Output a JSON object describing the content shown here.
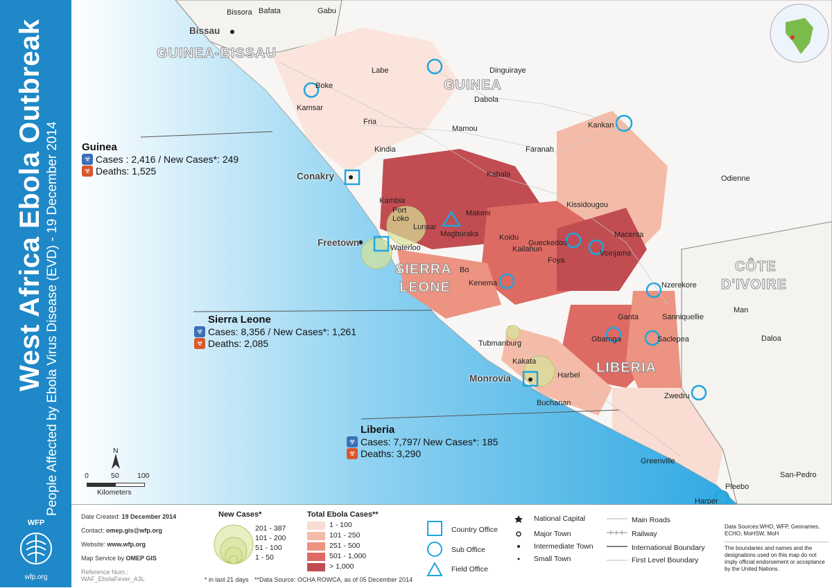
{
  "title": "West Africa Ebola Outbreak",
  "subtitle": "People Affected by Ebola Virus Disease (EVD) - 19 December 2014",
  "logo": {
    "name": "WFP",
    "url": "wfp.org"
  },
  "countries": {
    "guinea_bissau": "GUINEA-BISSAU",
    "guinea": "GUINEA",
    "sierra_leone": [
      "SIERRA",
      "LEONE"
    ],
    "liberia": "LIBERIA",
    "cote_divoire": [
      "CÔTE",
      "D'IVOIRE"
    ]
  },
  "capitals": {
    "bissau": "Bissau",
    "conakry": "Conakry",
    "freetown": "Freetown",
    "monrovia": "Monrovia"
  },
  "towns": [
    "Bissora",
    "Bafata",
    "Gabu",
    "Labe",
    "Boke",
    "Kamsar",
    "Dinguiraye",
    "Dabola",
    "Fria",
    "Mamou",
    "Kankan",
    "Kindia",
    "Faranah",
    "Kabala",
    "Kambia",
    "Port",
    "Loko",
    "Makeni",
    "Lunsar",
    "Magburaka",
    "Koidu",
    "Kissidougou",
    "Odienne",
    "Gueckedou",
    "Macenta",
    "Kailahun",
    "Foya",
    "Voinjama",
    "Waterloo",
    "Bo",
    "Kenema",
    "Nzerekore",
    "Man",
    "Ganta",
    "Sanniquellie",
    "Tubmanburg",
    "Gbarnga",
    "Saclepea",
    "Daloa",
    "Kakata",
    "Harbel",
    "Buchanan",
    "Zwedru",
    "Greenville",
    "San-Pedro",
    "Pleebo",
    "Harper"
  ],
  "callouts": {
    "guinea": {
      "name": "Guinea",
      "cases": "Cases : 2,416 / New Cases*: 249",
      "deaths": "Deaths: 1,525"
    },
    "sierra_leone": {
      "name": "Sierra Leone",
      "cases": "Cases: 8,356 / New Cases*: 1,261",
      "deaths": "Deaths: 2,085"
    },
    "liberia": {
      "name": "Liberia",
      "cases": "Cases: 7,797/ New Cases*: 185",
      "deaths": "Deaths: 3,290"
    }
  },
  "scale": {
    "north": "N",
    "ticks": [
      "0",
      "50",
      "100"
    ],
    "unit": "Kilometers"
  },
  "info": {
    "created": "Date Created:",
    "created_value": "19 December 2014",
    "contact": "Contact:",
    "contact_value": "omep.gis@wfp.org",
    "website": "Website:",
    "website_value": "www.wfp.org",
    "service": "Map Service by",
    "service_value": "OMEP GIS",
    "ref": "Reference Num.:",
    "ref_value": "WAF_EbolaFever_A3L"
  },
  "legend_new_cases": {
    "title": "New Cases*",
    "items": [
      "201 - 387",
      "101 - 200",
      "51 - 100",
      "1 - 50"
    ],
    "note": "* in last 21 days"
  },
  "legend_total": {
    "title": "Total Ebola Cases**",
    "items": [
      {
        "label": "1 - 100",
        "color": "#f9dcd2"
      },
      {
        "label": "101 - 250",
        "color": "#f4bca8"
      },
      {
        "label": "251 - 500",
        "color": "#ec9381"
      },
      {
        "label": "501 - 1,000",
        "color": "#dd6a63"
      },
      {
        "label": "> 1,000",
        "color": "#c14d52"
      }
    ],
    "note": "**Data Source: OCHA ROWCA, as of 05 December 2014"
  },
  "legend_offices": [
    "Country Office",
    "Sub Office",
    "Field Office"
  ],
  "legend_places": [
    "National Capital",
    "Major Town",
    "Intermediate Town",
    "Small Town"
  ],
  "legend_lines": [
    "Main Roads",
    "Railway",
    "International Boundary",
    "First Level Boundary"
  ],
  "sources": "Data Sources:WHO, WFP, Geonames, ECHO, MoHSW, MoH",
  "disclaimer": "The boundaries and names and the designations used on this map do not imply official endorsement or acceptance by the United Nations.",
  "colors": {
    "sidebar": "#1e88c8",
    "ocean": "#3fb2e6",
    "land": "#f7f6f4",
    "accent": "#1ea6df"
  }
}
